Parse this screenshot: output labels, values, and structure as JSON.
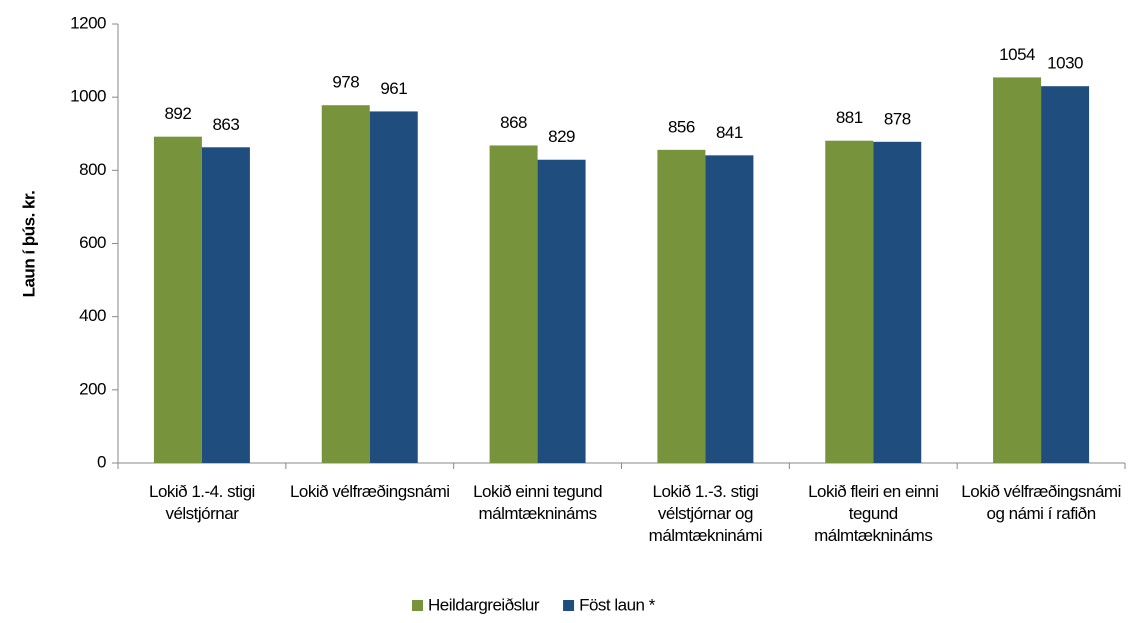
{
  "chart_data": {
    "type": "bar",
    "y_label": "Laun í þús. kr.",
    "categories": [
      "Lokið 1.-4. stigi vélstjórnar",
      "Lokið vélfræðingsnámi",
      "Lokið einni tegund málmtæknináms",
      "Lokið 1.-3. stigi vélstjórnar og málmtækninámi",
      "Lokið fleiri en einni tegund málmtæknináms",
      "Lokið vélfræðingsnámi og námi í rafiðn"
    ],
    "series": [
      {
        "name": "Heildargreiðslur",
        "color": "#77933c",
        "values": [
          892,
          978,
          868,
          856,
          881,
          1054
        ]
      },
      {
        "name": "Föst laun *",
        "color": "#1f4e7e",
        "values": [
          863,
          961,
          829,
          841,
          878,
          1030
        ]
      }
    ],
    "ylim": [
      0,
      1200
    ],
    "yticks": [
      0,
      200,
      400,
      600,
      800,
      1000,
      1200
    ],
    "legend": "bottom"
  }
}
